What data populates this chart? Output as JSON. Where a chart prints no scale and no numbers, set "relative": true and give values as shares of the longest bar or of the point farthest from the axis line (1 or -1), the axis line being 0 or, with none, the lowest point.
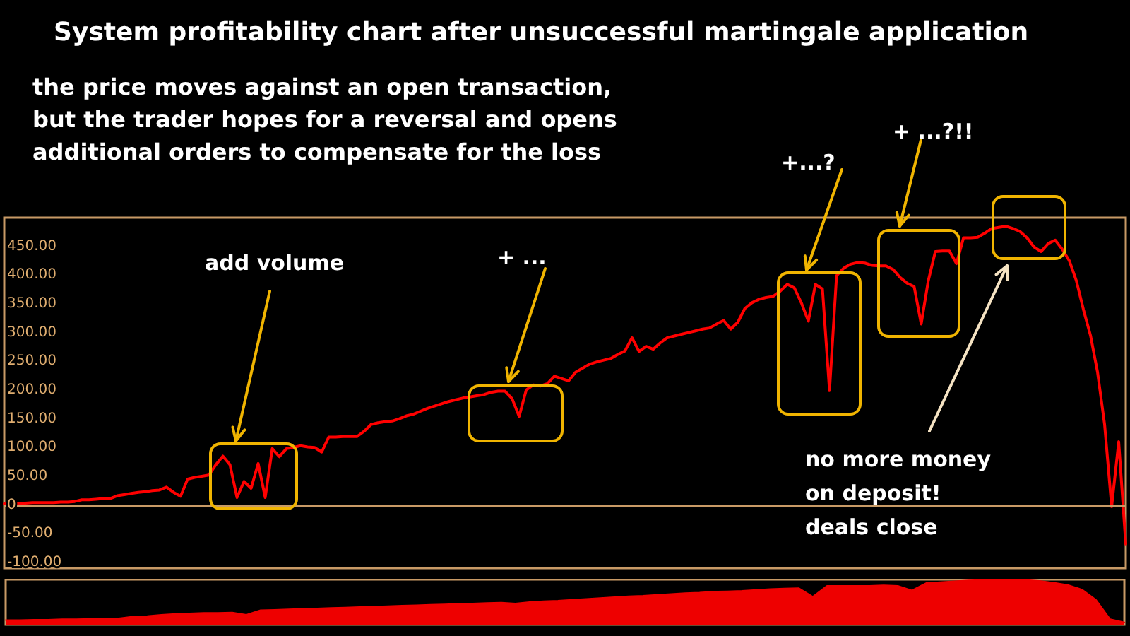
{
  "chart_data": [
    {
      "type": "line",
      "title": "System profitability chart after unsuccessful martingale application",
      "subtitle": "the price moves against an open transaction,\nbut the trader hopes for a reversal and opens\nadditional orders to compensate for the loss",
      "annotations": [
        "add volume",
        "+ ...",
        "+...?",
        "+ ...?!!",
        "no more money\non deposit!\ndeals close"
      ],
      "categories": [
        null,
        null,
        null,
        null,
        null,
        null,
        null,
        null,
        null,
        null,
        null,
        null,
        null,
        null,
        null,
        null,
        null,
        null,
        null,
        null,
        null,
        null,
        null,
        null,
        null,
        null,
        null,
        null,
        null,
        null,
        null,
        null,
        null,
        null,
        null,
        null,
        null,
        null,
        null,
        null,
        null,
        null,
        null,
        null,
        null,
        null,
        null,
        null,
        null,
        null,
        null,
        null,
        null,
        null,
        null,
        null,
        null,
        null,
        null,
        null,
        null,
        null,
        null,
        null,
        null,
        null,
        null,
        null,
        null,
        null,
        null,
        null,
        null,
        null,
        null,
        null,
        null,
        null,
        null,
        null,
        null,
        null,
        null,
        null,
        null,
        null,
        null,
        null,
        null,
        null,
        null,
        null,
        null,
        null,
        null,
        null,
        null,
        null,
        null,
        null,
        null,
        null,
        null,
        null,
        null,
        null,
        null,
        null,
        null,
        null,
        null,
        null,
        null,
        null,
        null,
        null,
        null,
        null,
        null,
        null,
        null,
        null,
        null,
        null,
        null,
        null,
        null,
        null,
        null,
        null,
        null,
        null,
        null,
        null,
        null,
        null,
        null,
        null,
        null,
        null,
        null,
        null,
        null,
        null,
        null,
        null,
        null,
        null,
        null,
        null,
        null,
        null,
        null,
        null,
        null,
        null,
        null,
        null,
        null,
        null
      ],
      "values": [
        2,
        3,
        3,
        3,
        4,
        4,
        4,
        4,
        5,
        5,
        6,
        9,
        9,
        10,
        11,
        11,
        16,
        18,
        20,
        22,
        23,
        25,
        26,
        31,
        22,
        15,
        45,
        48,
        50,
        52,
        70,
        85,
        70,
        13,
        41,
        29,
        72,
        13,
        98,
        84,
        98,
        100,
        103,
        101,
        100,
        92,
        118,
        118,
        119,
        119,
        119,
        128,
        140,
        143,
        145,
        146,
        150,
        155,
        158,
        163,
        168,
        172,
        176,
        180,
        183,
        186,
        188,
        190,
        192,
        196,
        198,
        198,
        185,
        154,
        200,
        209,
        207,
        211,
        224,
        220,
        216,
        231,
        238,
        245,
        249,
        252,
        255,
        262,
        268,
        291,
        267,
        276,
        271,
        282,
        291,
        294,
        297,
        300,
        303,
        306,
        308,
        315,
        321,
        306,
        318,
        342,
        352,
        358,
        361,
        363,
        372,
        384,
        378,
        352,
        320,
        384,
        376,
        199,
        399,
        412,
        419,
        422,
        421,
        417,
        416,
        416,
        410,
        396,
        386,
        380,
        315,
        390,
        441,
        442,
        442,
        420,
        465,
        465,
        466,
        473,
        481,
        483,
        485,
        481,
        476,
        465,
        449,
        441,
        455,
        461,
        445,
        425,
        390,
        340,
        295,
        231,
        140,
        -3,
        110,
        -68
      ],
      "color": "#ff0000",
      "ylim": [
        -110,
        500
      ],
      "yticks": [
        {
          "value": -100,
          "label": "-100.00"
        },
        {
          "value": -50,
          "label": "-50.00"
        },
        0,
        {
          "value": 50,
          "label": "50.00"
        },
        {
          "value": 100,
          "label": "100.00"
        },
        {
          "value": 150,
          "label": "150.00"
        },
        {
          "value": 200,
          "label": "200.00"
        },
        {
          "value": 250,
          "label": "250.00"
        },
        {
          "value": 300,
          "label": "300.00"
        },
        {
          "value": 350,
          "label": "350.00"
        },
        {
          "value": 400,
          "label": "400.00"
        },
        {
          "value": 450,
          "label": "450.00"
        }
      ],
      "ref_lines": [
        {
          "axis": "y",
          "value": 0,
          "color": "#c89a66"
        }
      ]
    },
    {
      "type": "area",
      "relative": true,
      "color": "#ee0000",
      "categories": [
        null,
        null,
        null,
        null,
        null,
        null,
        null,
        null,
        null,
        null,
        null,
        null,
        null,
        null,
        null,
        null,
        null,
        null,
        null,
        null,
        null,
        null,
        null,
        null,
        null,
        null,
        null,
        null,
        null,
        null,
        null,
        null,
        null,
        null,
        null,
        null,
        null,
        null,
        null,
        null,
        null,
        null,
        null,
        null,
        null,
        null,
        null,
        null,
        null,
        null,
        null,
        null,
        null,
        null,
        null,
        null,
        null,
        null,
        null,
        null,
        null,
        null,
        null,
        null,
        null,
        null,
        null,
        null,
        null,
        null,
        null,
        null,
        null,
        null,
        null,
        null,
        null,
        null,
        null,
        null
      ],
      "values": [
        0.1,
        0.1,
        0.11,
        0.11,
        0.12,
        0.12,
        0.13,
        0.13,
        0.14,
        0.18,
        0.19,
        0.22,
        0.24,
        0.25,
        0.26,
        0.26,
        0.27,
        0.22,
        0.32,
        0.33,
        0.34,
        0.35,
        0.36,
        0.37,
        0.38,
        0.39,
        0.4,
        0.41,
        0.42,
        0.43,
        0.44,
        0.45,
        0.46,
        0.47,
        0.48,
        0.49,
        0.47,
        0.5,
        0.52,
        0.53,
        0.55,
        0.57,
        0.59,
        0.61,
        0.63,
        0.64,
        0.66,
        0.68,
        0.7,
        0.71,
        0.73,
        0.74,
        0.75,
        0.77,
        0.79,
        0.8,
        0.81,
        0.62,
        0.86,
        0.86,
        0.86,
        0.86,
        0.87,
        0.86,
        0.76,
        0.92,
        0.94,
        0.96,
        0.98,
        0.99,
        1,
        1,
        0.99,
        0.97,
        0.93,
        0.88,
        0.78,
        0.55,
        0.12,
        0.05
      ]
    }
  ]
}
